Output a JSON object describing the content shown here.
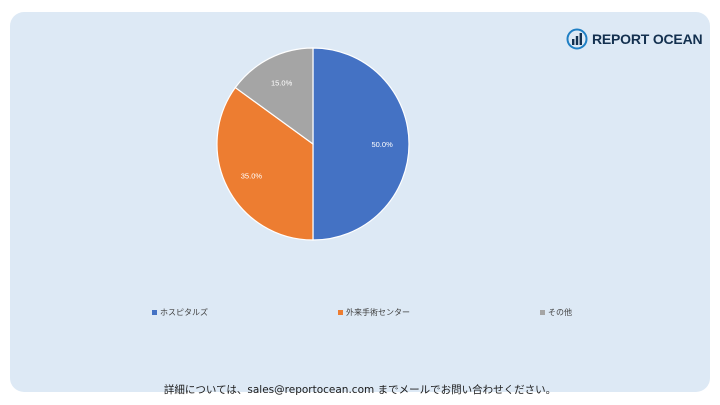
{
  "brand": {
    "name": "REPORT OCEAN",
    "icon": "bar-chart-globe-icon"
  },
  "chart_data": {
    "type": "pie",
    "categories": [
      "ホスピタルズ",
      "外来手術センター",
      "その他"
    ],
    "values": [
      50.0,
      35.0,
      15.0
    ],
    "data_labels": [
      "50.0%",
      "35.0%",
      "15.0%"
    ],
    "colors": [
      "#4472c4",
      "#ed7d31",
      "#a5a5a5"
    ],
    "start_angle_deg": 0,
    "direction": "clockwise",
    "legend_position": "bottom",
    "title": ""
  },
  "legend": {
    "items": [
      {
        "label": "ホスピタルズ",
        "color": "#4472c4"
      },
      {
        "label": "外来手術センター",
        "color": "#ed7d31"
      },
      {
        "label": "その他",
        "color": "#a5a5a5"
      }
    ]
  },
  "footer": {
    "text": "詳細については、sales@reportocean.com までメールでお問い合わせください。"
  }
}
